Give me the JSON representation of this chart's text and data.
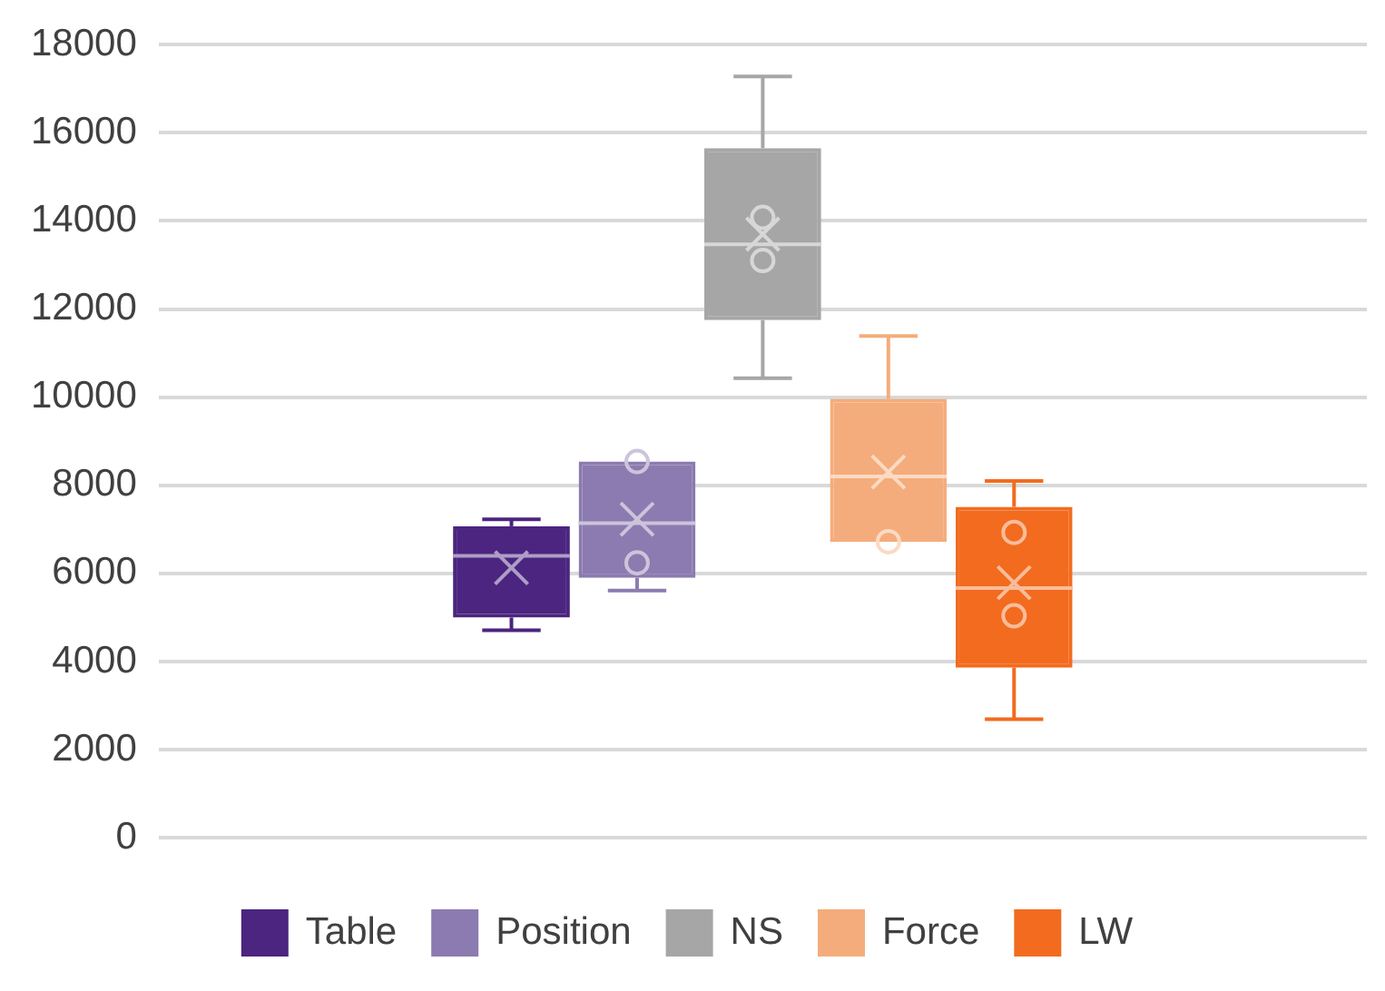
{
  "chart_data": {
    "type": "box",
    "categories": [
      null
    ],
    "ylim": [
      0,
      18000
    ],
    "yticks": [
      0,
      2000,
      4000,
      6000,
      8000,
      10000,
      12000,
      14000,
      16000,
      18000
    ],
    "grid": "y",
    "legend": "bottom",
    "series": [
      {
        "name": "Table",
        "color": "#4b2580",
        "boxes": [
          {
            "low": 4710,
            "q1": 5000,
            "median": 6400,
            "q3": 7070,
            "high": 7230,
            "mean": 6130
          }
        ]
      },
      {
        "name": "Position",
        "color": "#8b7bb0",
        "boxes": [
          {
            "low": 5610,
            "q1": 5900,
            "median": 7140,
            "q3": 8540,
            "high": 8540,
            "mean": 7230,
            "outliers": [
              8540,
              6240
            ]
          }
        ]
      },
      {
        "name": "NS",
        "color": "#a6a6a6",
        "boxes": [
          {
            "low": 10430,
            "q1": 11750,
            "median": 13470,
            "q3": 15650,
            "high": 17280,
            "mean": 13700,
            "outliers": [
              14080,
              13100
            ]
          }
        ]
      },
      {
        "name": "Force",
        "color": "#f5ac7c",
        "boxes": [
          {
            "low": 6720,
            "q1": 6720,
            "median": 8200,
            "q3": 9960,
            "high": 11390,
            "mean": 8300,
            "outliers": [
              6720
            ]
          }
        ]
      },
      {
        "name": "LW",
        "color": "#f26b1f",
        "boxes": [
          {
            "low": 2690,
            "q1": 3860,
            "median": 5670,
            "q3": 7510,
            "high": 8100,
            "mean": 5790,
            "outliers": [
              6930,
              5040
            ]
          }
        ]
      }
    ]
  }
}
